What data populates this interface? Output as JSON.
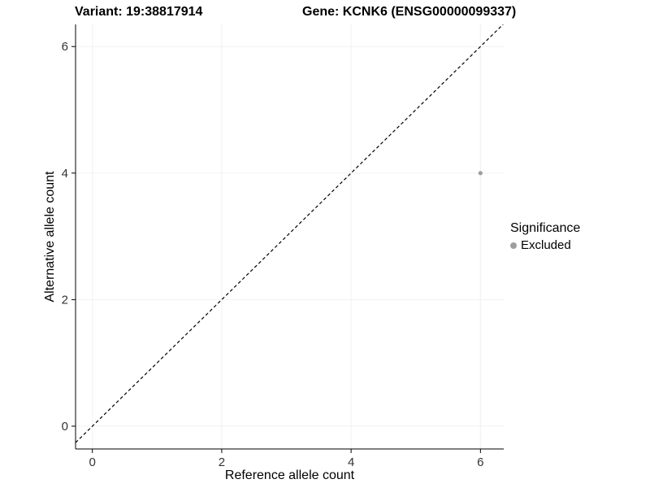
{
  "header": {
    "variant_title": "Variant: 19:38817914",
    "gene_title": "Gene: KCNK6 (ENSG00000099337)"
  },
  "chart_data": {
    "type": "scatter",
    "title": "Variant: 19:38817914 | Gene: KCNK6 (ENSG00000099337)",
    "xlabel": "Reference allele count",
    "ylabel": "Alternative allele count",
    "xlim": [
      -0.26,
      6.36
    ],
    "ylim": [
      -0.36,
      6.35
    ],
    "xticks": [
      0,
      2,
      4,
      6
    ],
    "yticks": [
      0,
      2,
      4,
      6
    ],
    "grid": "major-faint",
    "identity_line": {
      "slope": 1,
      "intercept": 0,
      "style": "dashed",
      "color": "#000000"
    },
    "points": [
      {
        "x": 6,
        "y": 4,
        "significance": "Excluded"
      }
    ],
    "legend": {
      "title": "Significance",
      "position": "right",
      "entries": [
        {
          "label": "Excluded",
          "color": "#9e9e9e"
        }
      ]
    },
    "style": {
      "point_color": "#9e9e9e",
      "axis_color": "#000000",
      "tick_label_color": "#333333",
      "grid_major_color": "#f0f0f0",
      "background": "#ffffff"
    }
  }
}
